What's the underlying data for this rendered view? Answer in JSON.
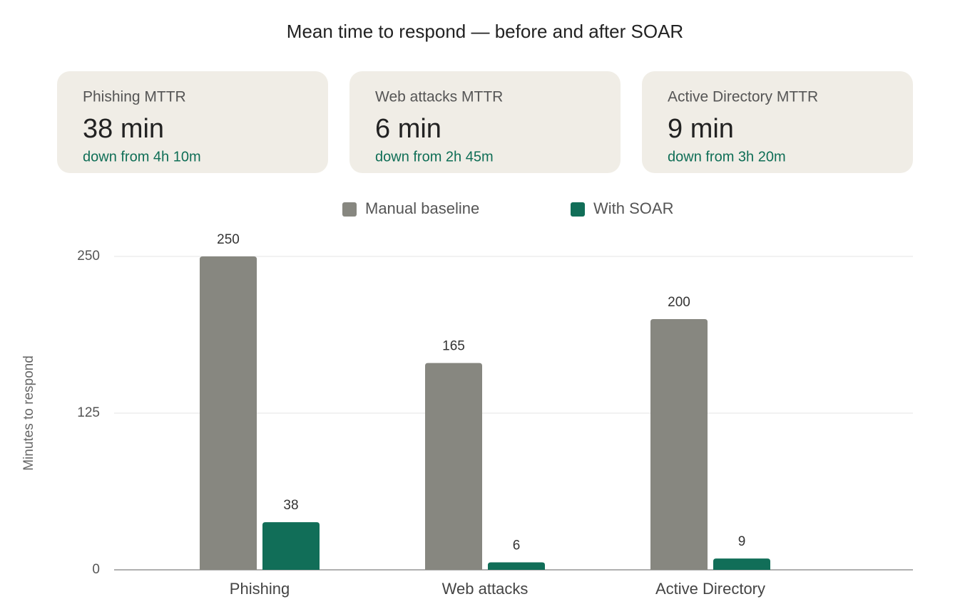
{
  "chart_data": {
    "type": "bar",
    "title": "Mean time to respond — before and after SOAR",
    "y_label": "Minutes to respond",
    "categories": [
      "Phishing",
      "Web attacks",
      "Active Directory"
    ],
    "series": [
      {
        "name": "Manual baseline",
        "color": "#878780",
        "values": [
          250,
          165,
          200
        ]
      },
      {
        "name": "With SOAR",
        "color": "#116e58",
        "values": [
          38,
          6,
          9
        ]
      }
    ],
    "ylim": [
      0,
      300
    ],
    "yticks": [
      0,
      125,
      250
    ],
    "grid": true,
    "legend": "top"
  },
  "kpi_cards": [
    {
      "label": "Phishing MTTR",
      "value": "38 min",
      "note": "down from 4h 10m"
    },
    {
      "label": "Web attacks MTTR",
      "value": "6 min",
      "note": "down from 2h 45m"
    },
    {
      "label": "Active Directory MTTR",
      "value": "9 min",
      "note": "down from 3h 20m"
    }
  ]
}
